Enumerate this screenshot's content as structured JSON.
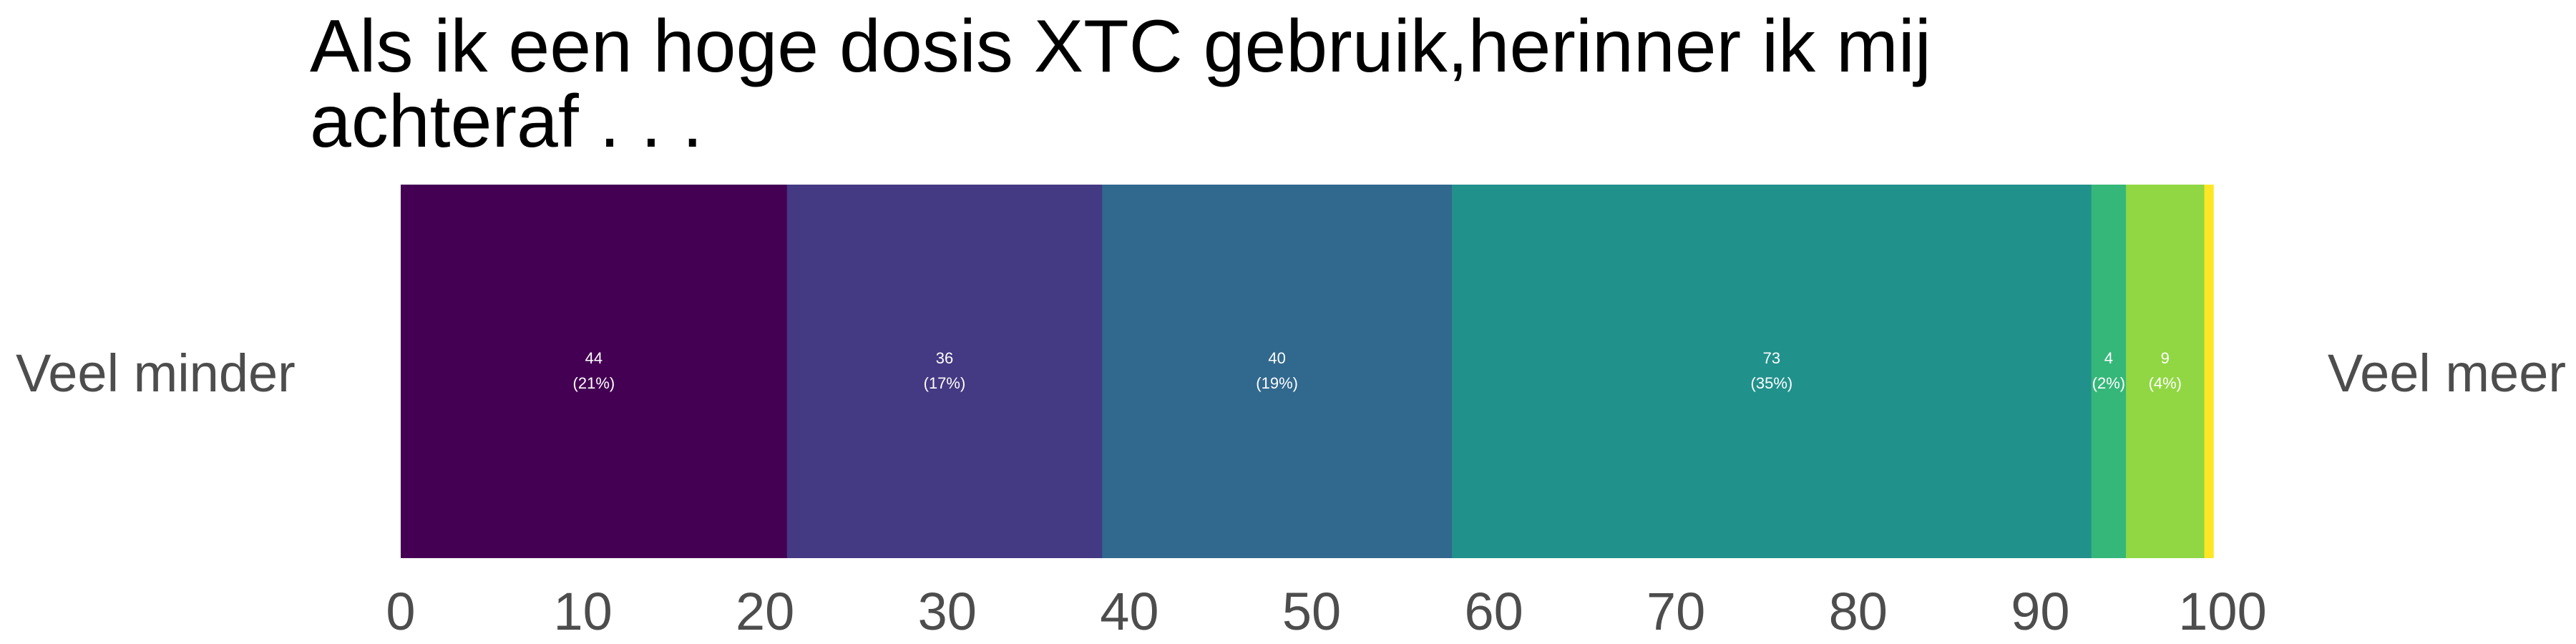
{
  "chart_data": {
    "type": "bar",
    "orientation": "horizontal",
    "stacked": true,
    "title": "Als ik een hoge dosis XTC gebruik,herinner ik mij achteraf . . .",
    "title_lines": [
      "Als ik een hoge dosis XTC gebruik,herinner ik mij",
      "achteraf . . ."
    ],
    "left_label": "Veel minder",
    "right_label": "Veel meer",
    "xlim": [
      0,
      100
    ],
    "x_ticks": [
      0,
      10,
      20,
      30,
      40,
      50,
      60,
      70,
      80,
      90,
      100
    ],
    "grid": false,
    "legend": "none",
    "series": [
      {
        "count": 44,
        "percent": 21.2,
        "count_label": "44",
        "percent_label": "(21%)",
        "color": "#440154"
      },
      {
        "count": 36,
        "percent": 17.3,
        "count_label": "36",
        "percent_label": "(17%)",
        "color": "#443983"
      },
      {
        "count": 40,
        "percent": 19.2,
        "count_label": "40",
        "percent_label": "(19%)",
        "color": "#31688e"
      },
      {
        "count": 73,
        "percent": 35.1,
        "count_label": "73",
        "percent_label": "(35%)",
        "color": "#21918c"
      },
      {
        "count": 4,
        "percent": 1.9,
        "count_label": "4",
        "percent_label": "(2%)",
        "color": "#35b779"
      },
      {
        "count": 9,
        "percent": 4.3,
        "count_label": "9",
        "percent_label": "(4%)",
        "color": "#90d743"
      },
      {
        "count": 1,
        "percent": 0.5,
        "count_label": "",
        "percent_label": "",
        "color": "#fde725"
      }
    ]
  }
}
